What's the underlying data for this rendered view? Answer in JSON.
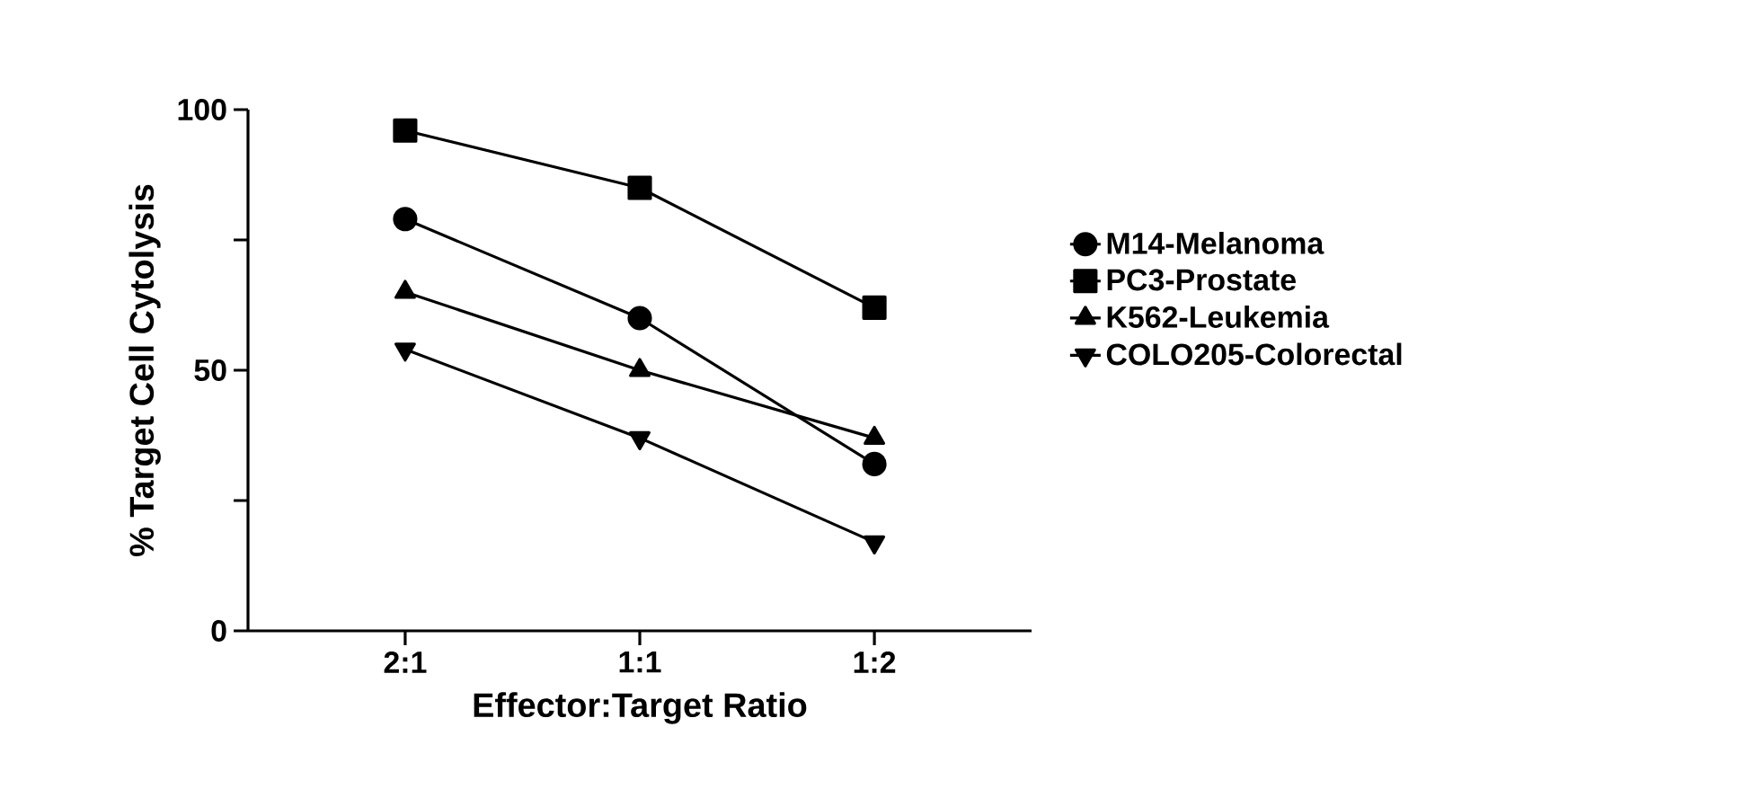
{
  "chart_data": {
    "type": "line",
    "xlabel": "Effector:Target Ratio",
    "ylabel": "% Target Cell Cytolysis",
    "categories": [
      "2:1",
      "1:1",
      "1:2"
    ],
    "series": [
      {
        "name": "M14-Melanoma",
        "color": "#000000",
        "marker": "circle",
        "values": [
          79,
          60,
          32
        ]
      },
      {
        "name": "PC3-Prostate",
        "color": "#000000",
        "marker": "square",
        "values": [
          96,
          85,
          62
        ]
      },
      {
        "name": "K562-Leukemia",
        "color": "#000000",
        "marker": "triangle",
        "values": [
          65,
          50,
          37
        ]
      },
      {
        "name": "COLO205-Colorectal",
        "color": "#000000",
        "marker": "triangle down",
        "values": [
          54,
          37,
          17
        ]
      }
    ],
    "ylim": [
      0,
      100
    ],
    "yticks": [
      0,
      {
        "value": 25,
        "label": null
      },
      50,
      {
        "value": 75,
        "label": null
      },
      100
    ],
    "grid": false,
    "legend": "right",
    "line_style": "solid"
  }
}
